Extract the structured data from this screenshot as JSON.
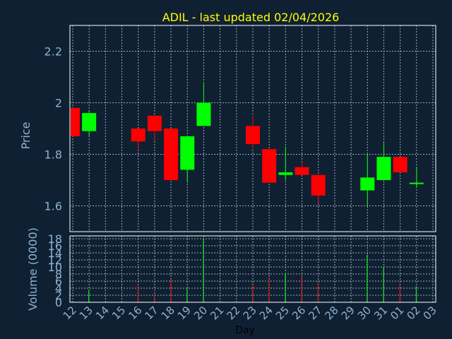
{
  "chart_data": {
    "type": "candlestick",
    "title": "ADIL - last updated 02/04/2026",
    "xlabel": "Day",
    "price_panel": {
      "ylabel": "Price",
      "ylim": [
        1.5,
        2.3
      ],
      "yticks": [
        "2.2",
        "2",
        "1.8",
        "1.6"
      ],
      "grid": true
    },
    "volume_panel": {
      "ylabel": "Volume (0000)",
      "ylim": [
        0,
        18
      ],
      "yticks": [
        "18",
        "16",
        "14",
        "12",
        "10",
        "8",
        "6",
        "4",
        "2",
        "0"
      ],
      "grid": true
    },
    "x_ticks": [
      "12",
      "13",
      "14",
      "15",
      "16",
      "17",
      "18",
      "19",
      "20",
      "21",
      "22",
      "23",
      "24",
      "25",
      "26",
      "27",
      "28",
      "29",
      "30",
      "31",
      "01",
      "02",
      "03"
    ],
    "candles": [
      {
        "day": "12",
        "open": 1.98,
        "close": 1.87,
        "high": 1.98,
        "low": 1.87,
        "volume": 0
      },
      {
        "day": "13",
        "open": 1.89,
        "close": 1.96,
        "high": 1.97,
        "low": 1.87,
        "volume": 3.5
      },
      {
        "day": "16",
        "open": 1.9,
        "close": 1.85,
        "high": 1.9,
        "low": 1.82,
        "volume": 5
      },
      {
        "day": "17",
        "open": 1.95,
        "close": 1.89,
        "high": 1.95,
        "low": 1.85,
        "volume": 2
      },
      {
        "day": "18",
        "open": 1.9,
        "close": 1.7,
        "high": 1.9,
        "low": 1.7,
        "volume": 6.5
      },
      {
        "day": "19",
        "open": 1.74,
        "close": 1.87,
        "high": 1.87,
        "low": 1.69,
        "volume": 4
      },
      {
        "day": "20",
        "open": 1.91,
        "close": 2.0,
        "high": 2.08,
        "low": 1.91,
        "volume": 18
      },
      {
        "day": "23",
        "open": 1.91,
        "close": 1.84,
        "high": 1.95,
        "low": 1.82,
        "volume": 5.5
      },
      {
        "day": "24",
        "open": 1.82,
        "close": 1.69,
        "high": 1.82,
        "low": 1.69,
        "volume": 7
      },
      {
        "day": "25",
        "open": 1.72,
        "close": 1.73,
        "high": 1.83,
        "low": 1.7,
        "volume": 8
      },
      {
        "day": "26",
        "open": 1.75,
        "close": 1.72,
        "high": 1.77,
        "low": 1.72,
        "volume": 7.5
      },
      {
        "day": "27",
        "open": 1.72,
        "close": 1.64,
        "high": 1.72,
        "low": 1.61,
        "volume": 5.5
      },
      {
        "day": "30",
        "open": 1.66,
        "close": 1.71,
        "high": 1.8,
        "low": 1.6,
        "volume": 13.5
      },
      {
        "day": "31",
        "open": 1.7,
        "close": 1.79,
        "high": 1.85,
        "low": 1.7,
        "volume": 10
      },
      {
        "day": "01",
        "open": 1.79,
        "close": 1.73,
        "high": 1.79,
        "low": 1.73,
        "volume": 5
      },
      {
        "day": "02",
        "open": 1.69,
        "close": 1.69,
        "high": 1.75,
        "low": 1.67,
        "volume": 4.5
      }
    ],
    "colors": {
      "background": "#0f2033",
      "up": "#00ff00",
      "down": "#ff0000",
      "title": "#ffff00",
      "axis_text": "#8fb2cf",
      "grid": "#b9c3cc",
      "frame": "#ffffff"
    }
  }
}
